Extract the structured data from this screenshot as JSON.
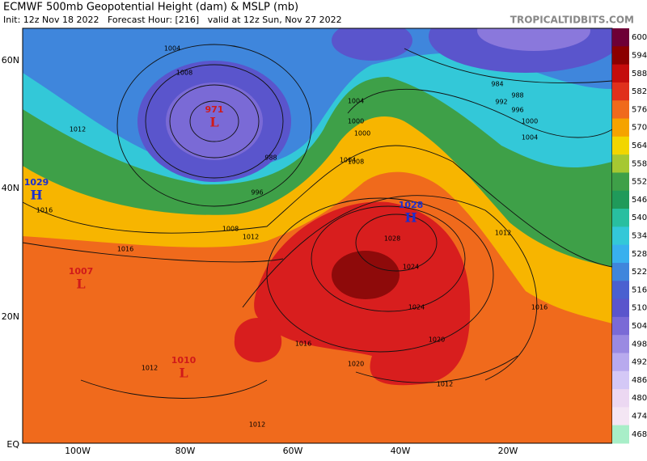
{
  "header": {
    "title": "ECMWF 500mb Geopotential Height (dam) & MSLP (mb)",
    "subtitle": "Init: 12z Nov 18 2022   Forecast Hour: [216]   valid at 12z Sun, Nov 27 2022",
    "site": "TROPICALTIDBITS.COM"
  },
  "axes": {
    "lat": [
      "60N",
      "40N",
      "20N",
      "EQ"
    ],
    "lon": [
      "100W",
      "80W",
      "60W",
      "40W",
      "20W"
    ]
  },
  "colorbar": {
    "labels": [
      600,
      594,
      588,
      582,
      576,
      570,
      564,
      558,
      552,
      546,
      540,
      534,
      528,
      522,
      516,
      510,
      504,
      498,
      492,
      486,
      480,
      474,
      468
    ]
  },
  "centers": [
    {
      "letter": "H",
      "value": "1029"
    },
    {
      "letter": "L",
      "value": "971"
    },
    {
      "letter": "H",
      "value": "1028"
    },
    {
      "letter": "L",
      "value": "1007"
    },
    {
      "letter": "L",
      "value": "1010"
    }
  ],
  "isobars": [
    "1004",
    "1008",
    "1012",
    "1016",
    "1020",
    "1024",
    "1028",
    "1024",
    "1020",
    "1016",
    "1012",
    "1016",
    "1012",
    "1012",
    "1012",
    "988",
    "996",
    "1000",
    "1004",
    "1008",
    "984",
    "988",
    "992",
    "996",
    "1000",
    "1004",
    "1012",
    "1016",
    "1008",
    "1004",
    "1000"
  ]
}
